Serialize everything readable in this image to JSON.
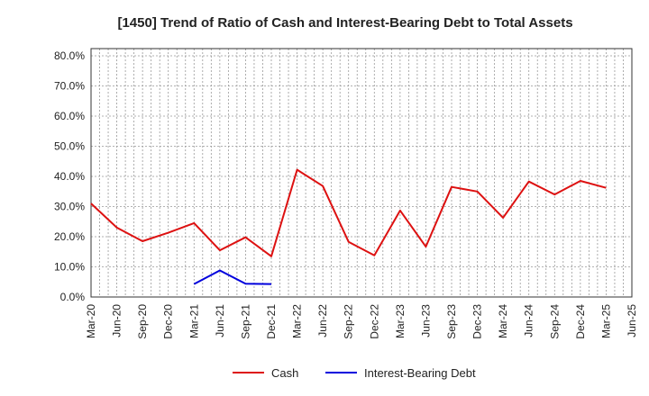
{
  "chart_data": {
    "type": "line",
    "title": "[1450]  Trend of Ratio of Cash and Interest-Bearing Debt to Total Assets",
    "xlabel": "",
    "ylabel": "",
    "ylim": [
      0,
      80
    ],
    "yticks": [
      0,
      10,
      20,
      30,
      40,
      50,
      60,
      70,
      80
    ],
    "ytick_labels": [
      "0.0%",
      "10.0%",
      "20.0%",
      "30.0%",
      "40.0%",
      "50.0%",
      "60.0%",
      "70.0%",
      "80.0%"
    ],
    "categories": [
      "Mar-20",
      "Jun-20",
      "Sep-20",
      "Dec-20",
      "Mar-21",
      "Jun-21",
      "Sep-21",
      "Dec-21",
      "Mar-22",
      "Jun-22",
      "Sep-22",
      "Dec-22",
      "Mar-23",
      "Jun-23",
      "Sep-23",
      "Dec-23",
      "Mar-24",
      "Jun-24",
      "Sep-24",
      "Dec-24",
      "Mar-25",
      "Jun-25"
    ],
    "grid": true,
    "legend_position": "bottom-center",
    "series": [
      {
        "name": "Cash",
        "color": "#dd1111",
        "values": [
          31.0,
          23.0,
          18.5,
          21.3,
          24.5,
          15.5,
          19.8,
          13.5,
          42.2,
          36.8,
          18.3,
          13.8,
          28.7,
          16.7,
          36.5,
          35.0,
          26.3,
          38.3,
          34.0,
          38.5,
          36.2,
          null
        ]
      },
      {
        "name": "Interest-Bearing Debt",
        "color": "#0000dd",
        "values": [
          null,
          null,
          null,
          null,
          4.3,
          8.8,
          4.4,
          4.3,
          null,
          null,
          null,
          null,
          null,
          null,
          null,
          null,
          null,
          null,
          null,
          null,
          null,
          null
        ]
      }
    ]
  }
}
